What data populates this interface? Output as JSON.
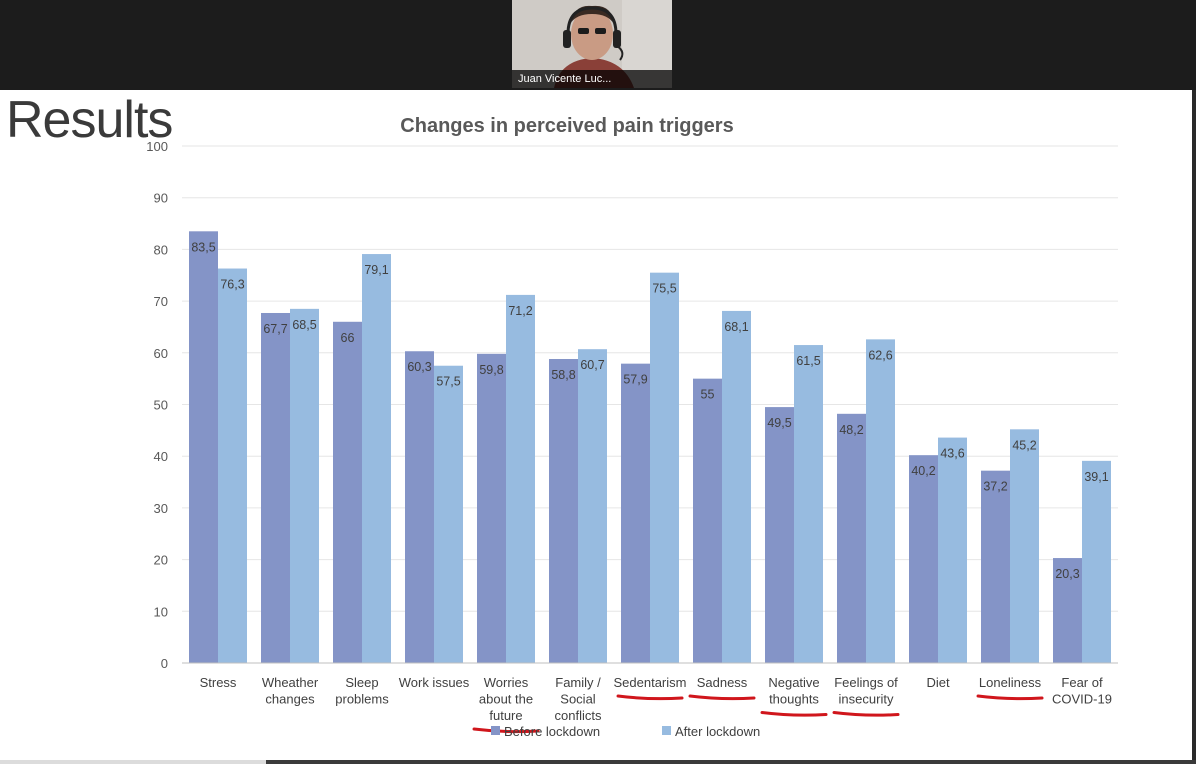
{
  "window": {
    "participant_name": "Juan Vicente Luc..."
  },
  "slide": {
    "heading": "Results"
  },
  "colors": {
    "before": "#8494c7",
    "after": "#97bbe0",
    "underline": "#d0161c",
    "grid": "#e6e6e6"
  },
  "chart_data": {
    "type": "bar",
    "title": "Changes in perceived pain triggers",
    "xlabel": "",
    "ylabel": "",
    "ylim": [
      0,
      100
    ],
    "yticks": [
      "0",
      "10",
      "20",
      "30",
      "40",
      "50",
      "60",
      "70",
      "80",
      "90",
      "100"
    ],
    "grid": true,
    "legend_position": "bottom",
    "categories": [
      [
        "Stress"
      ],
      [
        "Wheather",
        "changes"
      ],
      [
        "Sleep",
        "problems"
      ],
      [
        "Work issues"
      ],
      [
        "Worries",
        "about the",
        "future"
      ],
      [
        "Family /",
        "Social",
        "conflicts"
      ],
      [
        "Sedentarism"
      ],
      [
        "Sadness"
      ],
      [
        "Negative",
        "thoughts"
      ],
      [
        "Feelings of",
        "insecurity"
      ],
      [
        "Diet"
      ],
      [
        "Loneliness"
      ],
      [
        "Fear of",
        "COVID-19"
      ]
    ],
    "series": [
      {
        "name": "Before lockdown",
        "values": [
          83.5,
          67.7,
          66,
          60.3,
          59.8,
          58.8,
          57.9,
          55,
          49.5,
          48.2,
          40.2,
          37.2,
          20.3
        ],
        "labels": [
          "83,5",
          "67,7",
          "66",
          "60,3",
          "59,8",
          "58,8",
          "57,9",
          "55",
          "49,5",
          "48,2",
          "40,2",
          "37,2",
          "20,3"
        ]
      },
      {
        "name": "After lockdown",
        "values": [
          76.3,
          68.5,
          79.1,
          57.5,
          71.2,
          60.7,
          75.5,
          68.1,
          61.5,
          62.6,
          43.6,
          45.2,
          39.1
        ],
        "labels": [
          "76,3",
          "68,5",
          "79,1",
          "57,5",
          "71,2",
          "60,7",
          "75,5",
          "68,1",
          "61,5",
          "62,6",
          "43,6",
          "45,2",
          "39,1"
        ]
      }
    ],
    "underlined_categories": [
      4,
      6,
      7,
      8,
      9,
      11
    ]
  }
}
